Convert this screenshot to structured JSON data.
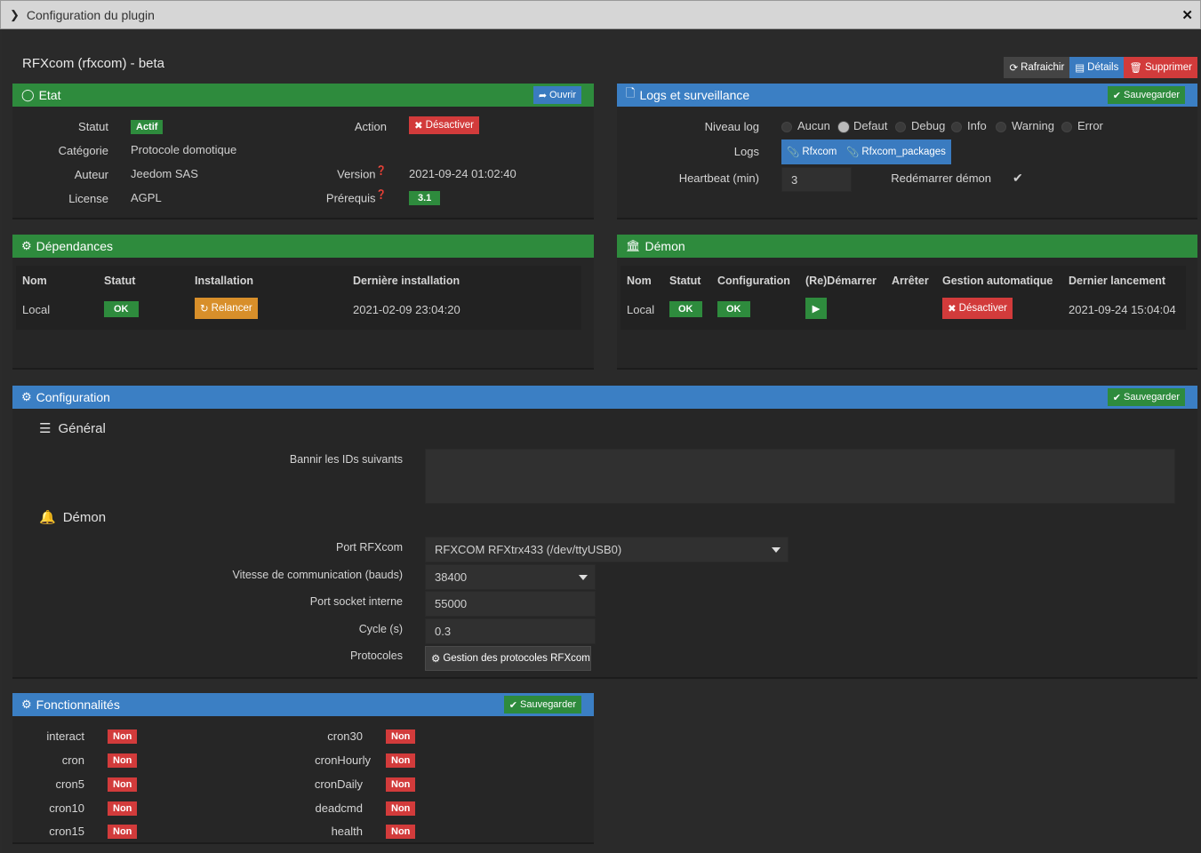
{
  "window": {
    "title": "Configuration du plugin"
  },
  "plugin": {
    "title": "RFXcom (rfxcom) - beta"
  },
  "top_buttons": {
    "refresh": "Rafraichir",
    "details": "Détails",
    "delete": "Supprimer"
  },
  "etat": {
    "title": "Etat",
    "open_label": "Ouvrir",
    "statut_label": "Statut",
    "statut_value": "Actif",
    "categorie_label": "Catégorie",
    "categorie_value": "Protocole domotique",
    "auteur_label": "Auteur",
    "auteur_value": "Jeedom SAS",
    "license_label": "License",
    "license_value": "AGPL",
    "action_label": "Action",
    "action_value": "Désactiver",
    "version_label": "Version",
    "version_value": "2021-09-24 01:02:40",
    "prerequis_label": "Prérequis",
    "prerequis_value": "3.1"
  },
  "logs": {
    "title": "Logs et surveillance",
    "save_label": "Sauvegarder",
    "niveau_label": "Niveau log",
    "levels": [
      "Aucun",
      "Defaut",
      "Debug",
      "Info",
      "Warning",
      "Error"
    ],
    "selected_level": "Defaut",
    "logs_label": "Logs",
    "log_buttons": [
      "Rfxcom",
      "Rfxcom_packages"
    ],
    "heartbeat_label": "Heartbeat (min)",
    "heartbeat_value": "3",
    "restart_label": "Redémarrer démon"
  },
  "dependances": {
    "title": "Dépendances",
    "headers": [
      "Nom",
      "Statut",
      "Installation",
      "Dernière installation"
    ],
    "row": {
      "nom": "Local",
      "statut": "OK",
      "installation": "Relancer",
      "derniere": "2021-02-09 23:04:20"
    }
  },
  "demon": {
    "title": "Démon",
    "headers": [
      "Nom",
      "Statut",
      "Configuration",
      "(Re)Démarrer",
      "Arrêter",
      "Gestion automatique",
      "Dernier lancement"
    ],
    "row": {
      "nom": "Local",
      "statut": "OK",
      "configuration": "OK",
      "gestion": "Désactiver",
      "dernier": "2021-09-24 15:04:04"
    }
  },
  "configuration": {
    "title": "Configuration",
    "save_label": "Sauvegarder",
    "general_title": "Général",
    "bannir_label": "Bannir les IDs suivants",
    "bannir_value": "",
    "demon_title": "Démon",
    "port_label": "Port RFXcom",
    "port_value": "RFXCOM RFXtrx433 (/dev/ttyUSB0)",
    "vitesse_label": "Vitesse de communication (bauds)",
    "vitesse_value": "38400",
    "socket_label": "Port socket interne",
    "socket_value": "55000",
    "cycle_label": "Cycle (s)",
    "cycle_value": "0.3",
    "protocoles_label": "Protocoles",
    "protocoles_button": "Gestion des protocoles RFXcom"
  },
  "fonctionnalites": {
    "title": "Fonctionnalités",
    "save_label": "Sauvegarder",
    "left": [
      {
        "name": "interact",
        "value": "Non"
      },
      {
        "name": "cron",
        "value": "Non"
      },
      {
        "name": "cron5",
        "value": "Non"
      },
      {
        "name": "cron10",
        "value": "Non"
      },
      {
        "name": "cron15",
        "value": "Non"
      }
    ],
    "right": [
      {
        "name": "cron30",
        "value": "Non"
      },
      {
        "name": "cronHourly",
        "value": "Non"
      },
      {
        "name": "cronDaily",
        "value": "Non"
      },
      {
        "name": "deadcmd",
        "value": "Non"
      },
      {
        "name": "health",
        "value": "Non"
      }
    ]
  }
}
